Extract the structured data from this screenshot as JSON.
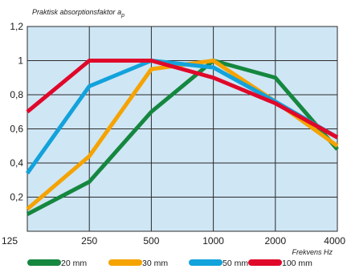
{
  "chart_data": {
    "type": "line",
    "title": "Praktisk absorptionsfaktor",
    "title_sub": "p",
    "title_letter": "a",
    "xlabel": "Frekvens Hz",
    "ylabel": "",
    "categories": [
      "125",
      "250",
      "500",
      "1000",
      "2000",
      "4000"
    ],
    "yticks": [
      "0,2",
      "0,4",
      "0,6",
      "0,8",
      "1",
      "1,2"
    ],
    "ylim": [
      0,
      1.2
    ],
    "grid": true,
    "legend_position": "bottom",
    "background": "#cfe6f5",
    "series": [
      {
        "name": "20 mm",
        "color": "#15873f",
        "values": [
          0.1,
          0.29,
          0.7,
          1.0,
          0.9,
          0.48
        ]
      },
      {
        "name": "30 mm",
        "color": "#f5a300",
        "values": [
          0.13,
          0.44,
          0.95,
          1.0,
          0.76,
          0.5
        ]
      },
      {
        "name": "50 mm",
        "color": "#12a2dc",
        "values": [
          0.34,
          0.85,
          1.0,
          0.96,
          0.76,
          0.55
        ]
      },
      {
        "name": "100 mm",
        "color": "#e0082a",
        "values": [
          0.7,
          1.0,
          1.0,
          0.9,
          0.75,
          0.55
        ]
      }
    ]
  }
}
